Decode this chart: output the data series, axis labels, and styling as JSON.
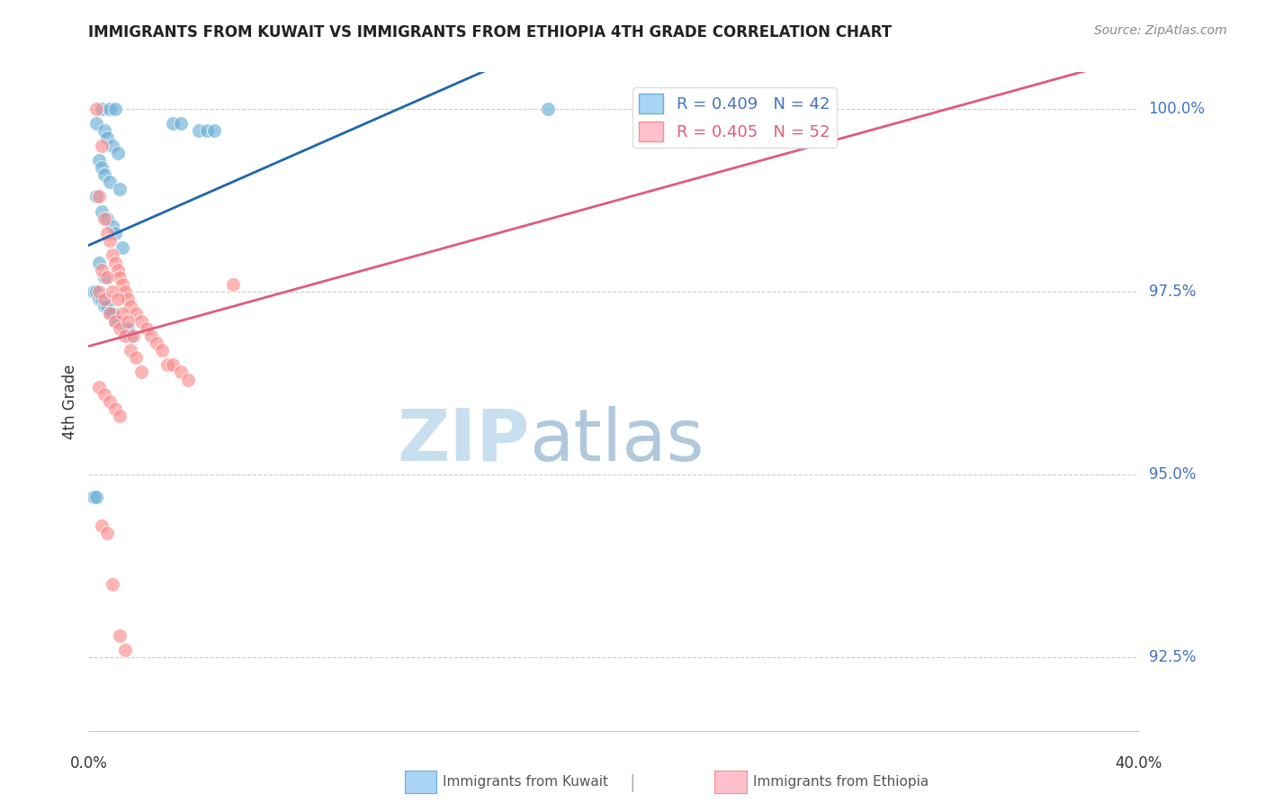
{
  "title": "IMMIGRANTS FROM KUWAIT VS IMMIGRANTS FROM ETHIOPIA 4TH GRADE CORRELATION CHART",
  "source": "Source: ZipAtlas.com",
  "ylabel": "4th Grade",
  "xlim": [
    0.0,
    40.0
  ],
  "ylim": [
    91.5,
    100.5
  ],
  "yticks": [
    92.5,
    95.0,
    97.5,
    100.0
  ],
  "ytick_labels": [
    "92.5%",
    "95.0%",
    "97.5%",
    "100.0%"
  ],
  "bg_color": "#ffffff",
  "grid_color": "#cccccc",
  "kuwait_color": "#6baed6",
  "ethiopia_color": "#fc8d8d",
  "kuwait_line_color": "#2166ac",
  "ethiopia_line_color": "#e05c7a",
  "kuwait_scatter_x": [
    0.5,
    0.8,
    1.0,
    0.3,
    0.6,
    0.7,
    0.9,
    1.1,
    0.4,
    0.5,
    0.6,
    0.8,
    1.2,
    0.3,
    0.5,
    0.7,
    0.9,
    1.0,
    1.3,
    0.4,
    0.6,
    3.2,
    3.5,
    4.2,
    4.5,
    4.8,
    0.2,
    0.3,
    0.4,
    0.5,
    0.6,
    0.7,
    0.8,
    0.9,
    1.0,
    1.1,
    1.4,
    1.6,
    1.5,
    0.2,
    0.3,
    17.5
  ],
  "kuwait_scatter_y": [
    100.0,
    100.0,
    100.0,
    99.8,
    99.7,
    99.6,
    99.5,
    99.4,
    99.3,
    99.2,
    99.1,
    99.0,
    98.9,
    98.8,
    98.6,
    98.5,
    98.4,
    98.3,
    98.1,
    97.9,
    97.7,
    99.8,
    99.8,
    99.7,
    99.7,
    99.7,
    97.5,
    97.5,
    97.4,
    97.4,
    97.3,
    97.3,
    97.2,
    97.2,
    97.1,
    97.1,
    97.0,
    96.9,
    97.0,
    94.7,
    94.7,
    100.0
  ],
  "ethiopia_scatter_x": [
    0.3,
    0.5,
    0.4,
    0.6,
    0.7,
    0.8,
    0.9,
    1.0,
    1.1,
    1.2,
    1.3,
    1.4,
    1.5,
    1.6,
    1.8,
    2.0,
    2.2,
    2.4,
    2.6,
    2.8,
    3.0,
    3.2,
    3.5,
    3.8,
    0.4,
    0.6,
    0.8,
    1.0,
    1.2,
    1.4,
    1.6,
    1.8,
    2.0,
    0.5,
    0.7,
    0.9,
    1.1,
    1.3,
    1.5,
    1.7,
    0.4,
    0.6,
    0.8,
    1.0,
    1.2,
    5.5,
    0.5,
    0.7,
    0.9,
    1.2,
    1.4,
    28.0
  ],
  "ethiopia_scatter_y": [
    100.0,
    99.5,
    98.8,
    98.5,
    98.3,
    98.2,
    98.0,
    97.9,
    97.8,
    97.7,
    97.6,
    97.5,
    97.4,
    97.3,
    97.2,
    97.1,
    97.0,
    96.9,
    96.8,
    96.7,
    96.5,
    96.5,
    96.4,
    96.3,
    97.5,
    97.4,
    97.2,
    97.1,
    97.0,
    96.9,
    96.7,
    96.6,
    96.4,
    97.8,
    97.7,
    97.5,
    97.4,
    97.2,
    97.1,
    96.9,
    96.2,
    96.1,
    96.0,
    95.9,
    95.8,
    97.6,
    94.3,
    94.2,
    93.5,
    92.8,
    92.6,
    100.0
  ]
}
